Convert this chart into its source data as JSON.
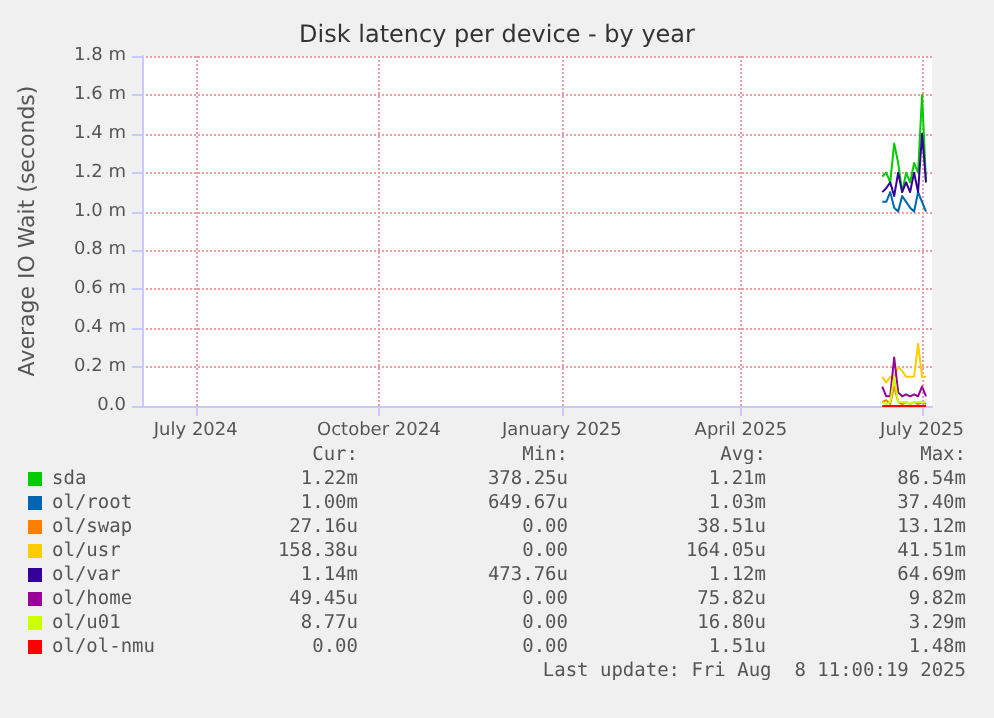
{
  "chart_data": {
    "type": "line",
    "title": "Disk latency per device - by year",
    "ylabel": "Average IO Wait (seconds)",
    "x": [
      "2025-06-11",
      "2025-06-13",
      "2025-06-15",
      "2025-06-17",
      "2025-06-19",
      "2025-06-21",
      "2025-06-23",
      "2025-06-25",
      "2025-06-27",
      "2025-06-29",
      "2025-07-01",
      "2025-07-03"
    ],
    "xlim": [
      "2024-06-04",
      "2025-07-06"
    ],
    "xticks": [
      {
        "value": "2024-07-01",
        "label": "July 2024"
      },
      {
        "value": "2024-10-01",
        "label": "October 2024"
      },
      {
        "value": "2025-01-01",
        "label": "January 2025"
      },
      {
        "value": "2025-04-01",
        "label": "April 2025"
      },
      {
        "value": "2025-07-01",
        "label": "July 2025"
      }
    ],
    "ylim": [
      0,
      1.8
    ],
    "yticks": [
      {
        "value": 0,
        "label": "0.0"
      },
      {
        "value": 0.2,
        "label": "0.2 m"
      },
      {
        "value": 0.4,
        "label": "0.4 m"
      },
      {
        "value": 0.6,
        "label": "0.6 m"
      },
      {
        "value": 0.8,
        "label": "0.8 m"
      },
      {
        "value": 1,
        "label": "1.0 m"
      },
      {
        "value": 1.2,
        "label": "1.2 m"
      },
      {
        "value": 1.4,
        "label": "1.4 m"
      },
      {
        "value": 1.6,
        "label": "1.6 m"
      },
      {
        "value": 1.8,
        "label": "1.8 m"
      }
    ],
    "series": [
      {
        "name": "sda",
        "color": "#00cc00",
        "values": [
          1.18,
          1.2,
          1.15,
          1.35,
          1.25,
          1.1,
          1.2,
          1.15,
          1.25,
          1.2,
          1.6,
          1.15
        ]
      },
      {
        "name": "ol/root",
        "color": "#0066b3",
        "values": [
          1.05,
          1.05,
          1.1,
          1.02,
          1.0,
          1.08,
          1.05,
          1.02,
          1.0,
          1.1,
          1.05,
          1.0
        ]
      },
      {
        "name": "ol/swap",
        "color": "#ff8000",
        "values": [
          0.02,
          0.03,
          0.01,
          0.1,
          0.02,
          0.01,
          0.02,
          0.01,
          0.02,
          0.01,
          0.02,
          0.01
        ]
      },
      {
        "name": "ol/usr",
        "color": "#ffcc00",
        "values": [
          0.15,
          0.12,
          0.15,
          0.15,
          0.2,
          0.18,
          0.15,
          0.15,
          0.15,
          0.32,
          0.15,
          0.15
        ]
      },
      {
        "name": "ol/var",
        "color": "#330099",
        "values": [
          1.1,
          1.12,
          1.15,
          1.08,
          1.2,
          1.1,
          1.15,
          1.1,
          1.2,
          1.1,
          1.4,
          1.15
        ]
      },
      {
        "name": "ol/home",
        "color": "#990099",
        "values": [
          0.1,
          0.05,
          0.05,
          0.25,
          0.07,
          0.05,
          0.06,
          0.05,
          0.06,
          0.05,
          0.1,
          0.05
        ]
      },
      {
        "name": "ol/u01",
        "color": "#ccff00",
        "values": [
          0.02,
          0.01,
          0.02,
          0.15,
          0.02,
          0.02,
          0.02,
          0.01,
          0.02,
          0.02,
          0.02,
          0.02
        ]
      },
      {
        "name": "ol/ol-nmu",
        "color": "#ff0000",
        "values": [
          0,
          0,
          0,
          0,
          0,
          0,
          0,
          0,
          0,
          0,
          0,
          0
        ]
      }
    ],
    "annotations": [
      "Cur:",
      "Min:",
      "Avg:",
      "Max:",
      "1.22m",
      "378.25u",
      "1.21m",
      "86.54m",
      "1.00m",
      "649.67u",
      "1.03m",
      "37.40m",
      "27.16u",
      "0.00",
      "38.51u",
      "13.12m",
      "158.38u",
      "0.00",
      "164.05u",
      "41.51m",
      "1.14m",
      "473.76u",
      "1.12m",
      "64.69m",
      "49.45u",
      "0.00",
      "75.82u",
      "9.82m",
      "8.77u",
      "0.00",
      "16.80u",
      "3.29m",
      "0.00",
      "0.00",
      "1.51u",
      "1.48m",
      "Last update: Fri Aug  8 11:00:19 2025"
    ],
    "grid": true,
    "legend": "bottom",
    "marker": "none",
    "line_style": "solid"
  }
}
